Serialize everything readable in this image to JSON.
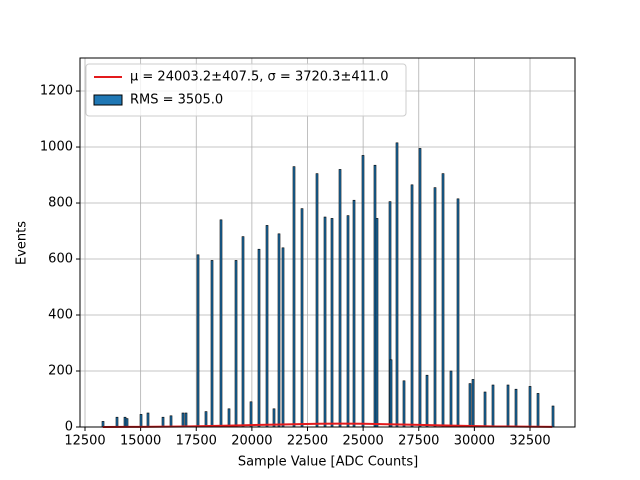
{
  "chart_data": {
    "type": "bar",
    "x_label": "Sample Value [ADC Counts]",
    "y_label": "Events",
    "xlim": [
      12275,
      34522
    ],
    "ylim": [
      0,
      1318
    ],
    "xticks": [
      12500,
      15000,
      17500,
      20000,
      22500,
      25000,
      27500,
      30000,
      32500
    ],
    "yticks": [
      0,
      200,
      400,
      600,
      800,
      1000,
      1200
    ],
    "grid": true,
    "legend": "upper left",
    "series": [
      {
        "name": "μ = 24003.2±407.5, σ = 3720.3±411.0",
        "type": "line",
        "color": "#e31a1c",
        "x": [
          13300,
          15000,
          17000,
          19000,
          21000,
          23000,
          24000,
          25000,
          27000,
          29000,
          31000,
          33500
        ],
        "values": [
          0.19,
          0.64,
          2.0,
          4.9,
          8.7,
          11.6,
          12,
          11.6,
          8.7,
          4.9,
          2.0,
          0.46
        ]
      },
      {
        "name": "RMS = 3505.0",
        "type": "bar",
        "color": "#1f77b4",
        "x": [
          13309,
          13938,
          14298,
          14388,
          15017,
          15331,
          16006,
          16365,
          16904,
          17039,
          17579,
          17938,
          18208,
          18612,
          18972,
          19287,
          19601,
          19961,
          20320,
          20680,
          20994,
          21219,
          21399,
          21893,
          22253,
          22927,
          23287,
          23601,
          23961,
          24320,
          24590,
          24994,
          25533,
          25623,
          26208,
          26253,
          26522,
          26837,
          27197,
          27556,
          27871,
          28230,
          28590,
          28949,
          29264,
          29803,
          29938,
          30478,
          30837,
          31511,
          31871,
          32500,
          32860,
          33534
        ],
        "values": [
          20,
          35,
          35,
          30,
          45,
          50,
          35,
          40,
          50,
          50,
          615,
          55,
          595,
          740,
          65,
          595,
          680,
          90,
          635,
          720,
          65,
          690,
          640,
          930,
          780,
          905,
          750,
          745,
          920,
          755,
          810,
          970,
          935,
          745,
          805,
          240,
          1015,
          165,
          865,
          995,
          185,
          855,
          905,
          200,
          815,
          155,
          170,
          125,
          150,
          150,
          135,
          145,
          120,
          75
        ]
      }
    ]
  }
}
